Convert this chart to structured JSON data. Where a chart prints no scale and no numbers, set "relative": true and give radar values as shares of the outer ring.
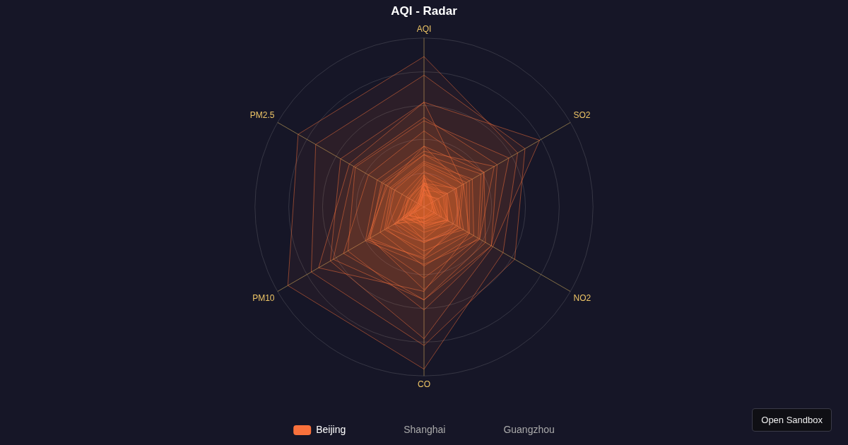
{
  "chart_data": {
    "type": "radar",
    "title": "AQI - Radar",
    "relative": true,
    "legend": "bottom",
    "grid": true,
    "marker": "none",
    "categories": [
      "AQI",
      "SO2",
      "NO2",
      "CO",
      "PM10",
      "PM2.5"
    ],
    "annotations": [
      "Open Sandbox"
    ],
    "series": [
      {
        "name": "Beijing",
        "color": "#f9713c",
        "values": [
          0.18,
          0.06,
          0.09,
          0.09,
          0.19,
          0.04
        ]
      },
      {
        "color": "#f9713c",
        "values": [
          0.08,
          0.09,
          0.17,
          0.13,
          0.07,
          0.04
        ]
      },
      {
        "color": "#f9713c",
        "values": [
          0.19,
          0.05,
          0.07,
          0.06,
          0.21,
          0.03
        ]
      },
      {
        "color": "#f9713c",
        "values": [
          0.11,
          0.06,
          0.08,
          0.07,
          0.1,
          0.03
        ]
      },
      {
        "color": "#f9713c",
        "values": [
          0.14,
          0.16,
          0.2,
          0.15,
          0.15,
          0.1
        ]
      },
      {
        "color": "#f9713c",
        "values": [
          0.27,
          0.33,
          0.34,
          0.35,
          0.3,
          0.23
        ]
      },
      {
        "color": "#f9713c",
        "values": [
          0.25,
          0.27,
          0.24,
          0.29,
          0.26,
          0.2
        ]
      },
      {
        "color": "#f9713c",
        "values": [
          0.26,
          0.29,
          0.3,
          0.26,
          0.27,
          0.22
        ]
      },
      {
        "color": "#f9713c",
        "values": [
          0.89,
          0.64,
          0.54,
          0.96,
          0.93,
          0.86
        ]
      },
      {
        "color": "#f9713c",
        "values": [
          0.62,
          0.27,
          0.31,
          0.5,
          0.72,
          0.51
        ]
      },
      {
        "color": "#f9713c",
        "values": [
          0.13,
          0.15,
          0.16,
          0.11,
          0.13,
          0.08
        ]
      },
      {
        "color": "#f9713c",
        "values": [
          0.14,
          0.07,
          0.11,
          0.09,
          0.13,
          0.04
        ]
      },
      {
        "color": "#f9713c",
        "values": [
          0.21,
          0.22,
          0.23,
          0.21,
          0.25,
          0.15
        ]
      },
      {
        "color": "#f9713c",
        "values": [
          0.36,
          0.41,
          0.38,
          0.34,
          0.4,
          0.32
        ]
      },
      {
        "color": "#f9713c",
        "values": [
          0.36,
          0.26,
          0.22,
          0.3,
          0.39,
          0.25
        ]
      },
      {
        "color": "#f9713c",
        "values": [
          0.11,
          0.05,
          0.07,
          0.07,
          0.1,
          0.02
        ]
      },
      {
        "color": "#f9713c",
        "values": [
          0.31,
          0.31,
          0.31,
          0.31,
          0.37,
          0.26
        ]
      },
      {
        "color": "#f9713c",
        "values": [
          0.62,
          0.79,
          0.47,
          0.78,
          0.64,
          0.57
        ]
      },
      {
        "color": "#f9713c",
        "values": [
          0.19,
          0.14,
          0.16,
          0.19,
          0.18,
          0.12
        ]
      },
      {
        "color": "#f9713c",
        "values": [
          0.07,
          0.1,
          0.12,
          0.1,
          0.06,
          0.03
        ]
      },
      {
        "color": "#f9713c",
        "values": [
          0.13,
          0.13,
          0.15,
          0.12,
          0.12,
          0.06
        ]
      },
      {
        "color": "#f9713c",
        "values": [
          0.31,
          0.39,
          0.37,
          0.42,
          0.38,
          0.28
        ]
      },
      {
        "color": "#f9713c",
        "values": [
          0.33,
          0.48,
          0.38,
          0.49,
          0.37,
          0.29
        ]
      },
      {
        "color": "#f9713c",
        "values": [
          0.1,
          0.16,
          0.16,
          0.1,
          0.1,
          0.05
        ]
      },
      {
        "color": "#f9713c",
        "values": [
          0.14,
          0.22,
          0.27,
          0.2,
          0.14,
          0.11
        ]
      },
      {
        "color": "#f9713c",
        "values": [
          0.51,
          0.58,
          0.46,
          0.61,
          0.52,
          0.47
        ]
      },
      {
        "color": "#f9713c",
        "values": [
          0.78,
          0.69,
          0.62,
          0.82,
          0.77,
          0.74
        ]
      },
      {
        "color": "#f9713c",
        "values": [
          0.53,
          0.5,
          0.46,
          0.55,
          0.62,
          0.48
        ]
      },
      {
        "color": "#f9713c",
        "values": [
          0.45,
          0.41,
          0.42,
          0.55,
          0.55,
          0.38
        ]
      },
      {
        "color": "#f9713c",
        "values": [
          0.17,
          0.21,
          0.25,
          0.21,
          0.2,
          0.1
        ]
      },
      {
        "color": "#f9713c",
        "values": [
          0.15,
          0.06,
          0.05,
          0.06,
          0.16,
          0.02
        ]
      },
      {
        "name": "Shanghai",
        "values": [
          null,
          null,
          null,
          null,
          null,
          null
        ]
      },
      {
        "name": "Guangzhou",
        "values": [
          null,
          null,
          null,
          null,
          null,
          null
        ]
      }
    ]
  }
}
